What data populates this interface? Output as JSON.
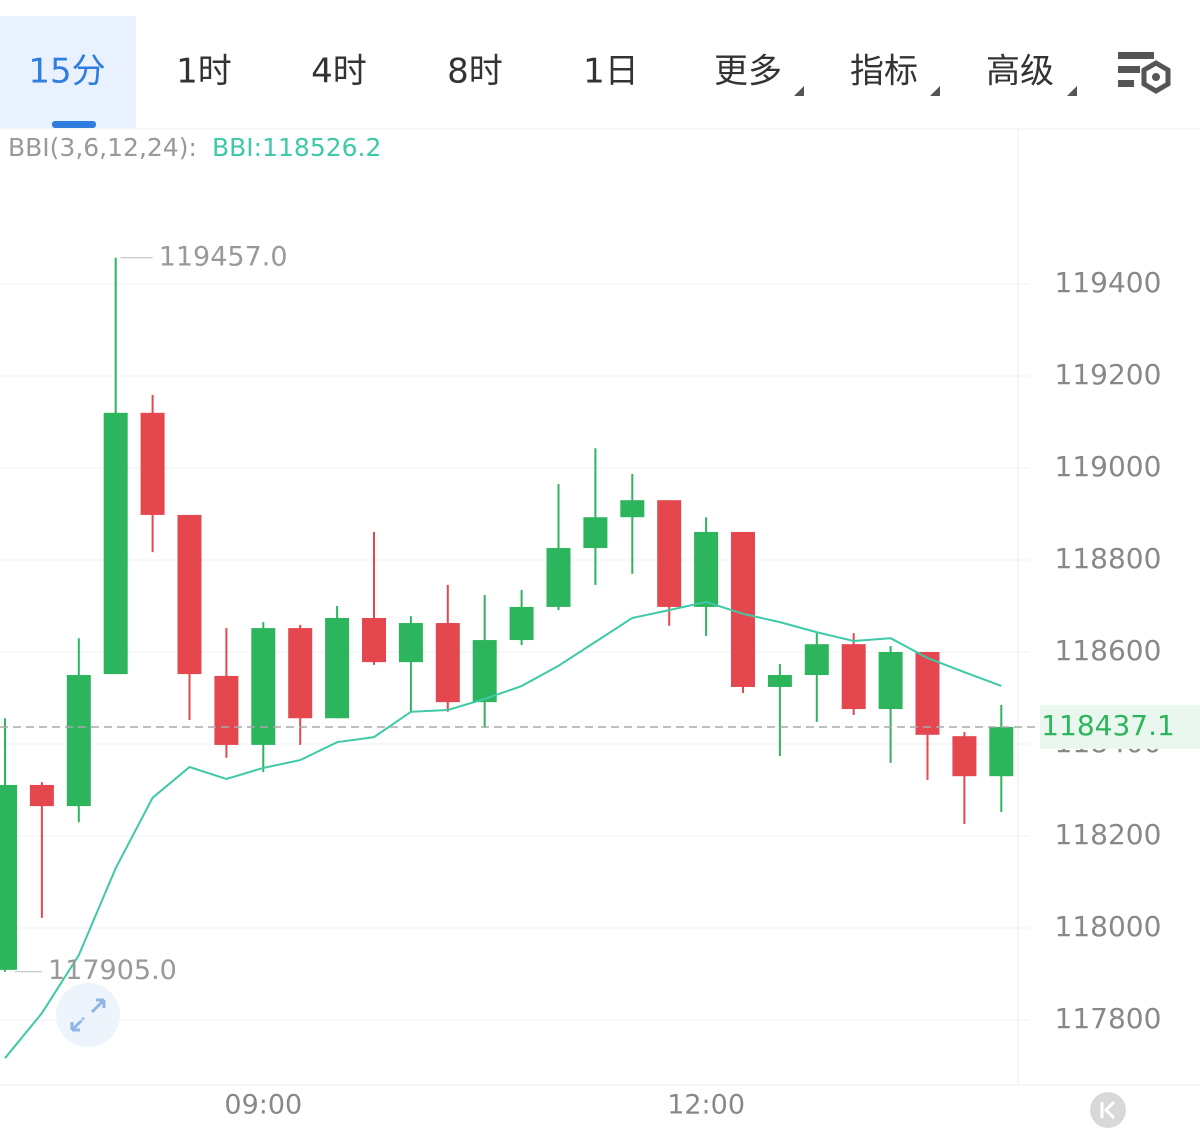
{
  "tabs": [
    "15分",
    "1时",
    "4时",
    "8时",
    "1日",
    "更多",
    "指标",
    "高级"
  ],
  "chart_data": {
    "type": "candlestick",
    "categories": [
      null,
      null,
      null,
      null,
      null,
      null,
      null,
      "09:00",
      null,
      null,
      null,
      null,
      null,
      null,
      null,
      null,
      null,
      null,
      null,
      "12:00",
      null,
      null,
      null,
      null,
      null,
      null,
      null,
      null
    ],
    "open": [
      117909,
      118311,
      118265,
      118552,
      119120,
      118898,
      118548,
      118398,
      118652,
      118456,
      118674,
      118578,
      118663,
      118491,
      118626,
      118698,
      118826,
      118893,
      118930,
      118698,
      118861,
      118524,
      118550,
      118617,
      118476,
      118600,
      118417,
      118330
    ],
    "high": [
      118456,
      118317,
      118630,
      119457,
      119159,
      118898,
      118652,
      118665,
      118659,
      118700,
      118861,
      118678,
      118746,
      118724,
      118735,
      118965,
      119043,
      118987,
      118930,
      118893,
      118861,
      118574,
      118641,
      118641,
      118613,
      118600,
      118426,
      118485
    ],
    "low": [
      117905,
      118022,
      118230,
      118552,
      118817,
      118452,
      118370,
      118339,
      118398,
      118456,
      118572,
      118470,
      118470,
      118435,
      118615,
      118691,
      118746,
      118770,
      118657,
      118635,
      118511,
      118374,
      118448,
      118463,
      118359,
      118322,
      118226,
      118252
    ],
    "close": [
      118311,
      118265,
      118550,
      119120,
      118898,
      118552,
      118398,
      118652,
      118456,
      118674,
      118578,
      118663,
      118491,
      118626,
      118698,
      118826,
      118893,
      118930,
      118698,
      118861,
      118524,
      118550,
      118617,
      118476,
      118600,
      118420,
      118330,
      118437.1
    ],
    "up_color": "#2db55d",
    "down_color": "#e5474f",
    "indicator": {
      "label": "BBI(3,6,12,24):",
      "value_label": "BBI:118526.2",
      "color": "#3ec9a7",
      "values": [
        117717,
        117815,
        117941,
        118130,
        118283,
        118350,
        118324,
        118348,
        118365,
        118404,
        118415,
        118470,
        118474,
        118498,
        118526,
        118570,
        118622,
        118674,
        118691,
        118709,
        118683,
        118665,
        118643,
        118624,
        118630,
        118587,
        118556,
        118526.2
      ]
    },
    "max_label": "119457.0",
    "min_label": "117905.0",
    "last_price_label": "118437.1",
    "ylim": [
      117658.7,
      119734.8
    ],
    "yticks": [
      117800,
      118000,
      118200,
      118400,
      118600,
      118800,
      119000,
      119200,
      119400
    ],
    "grid": true
  }
}
